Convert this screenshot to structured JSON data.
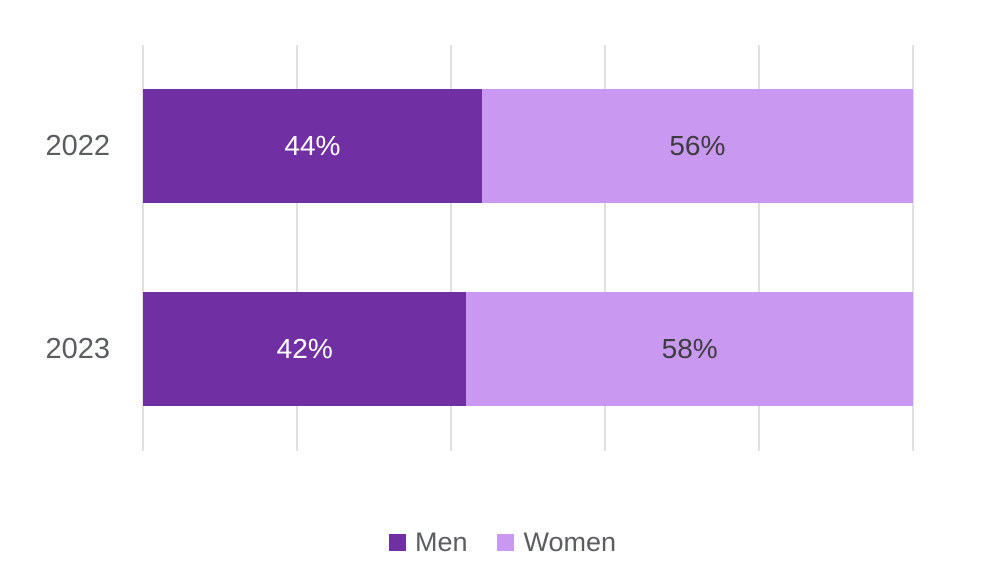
{
  "chart_data": {
    "type": "bar",
    "orientation": "horizontal",
    "stacked": true,
    "title": "",
    "xlabel": "",
    "ylabel": "",
    "categories": [
      "2022",
      "2023"
    ],
    "series": [
      {
        "name": "Men",
        "values": [
          44,
          42
        ],
        "color": "#7030a3",
        "label_color": "#ffffff"
      },
      {
        "name": "Women",
        "values": [
          56,
          58
        ],
        "color": "#c999f2",
        "label_color": "#3d3d40"
      }
    ],
    "data_labels": [
      {
        "category": "2022",
        "Men": "44%",
        "Women": "56%"
      },
      {
        "category": "2023",
        "Men": "42%",
        "Women": "58%"
      }
    ],
    "value_suffix": "%",
    "xlim": [
      0,
      100
    ],
    "gridlines_percent": [
      0,
      20,
      40,
      60,
      80,
      100
    ],
    "grid_on": true,
    "gridline_color": "#e0e0e0",
    "axis_label_color": "#5b5d5f",
    "legend_position": "bottom",
    "legend": [
      "Men",
      "Women"
    ],
    "background": "#ffffff"
  }
}
